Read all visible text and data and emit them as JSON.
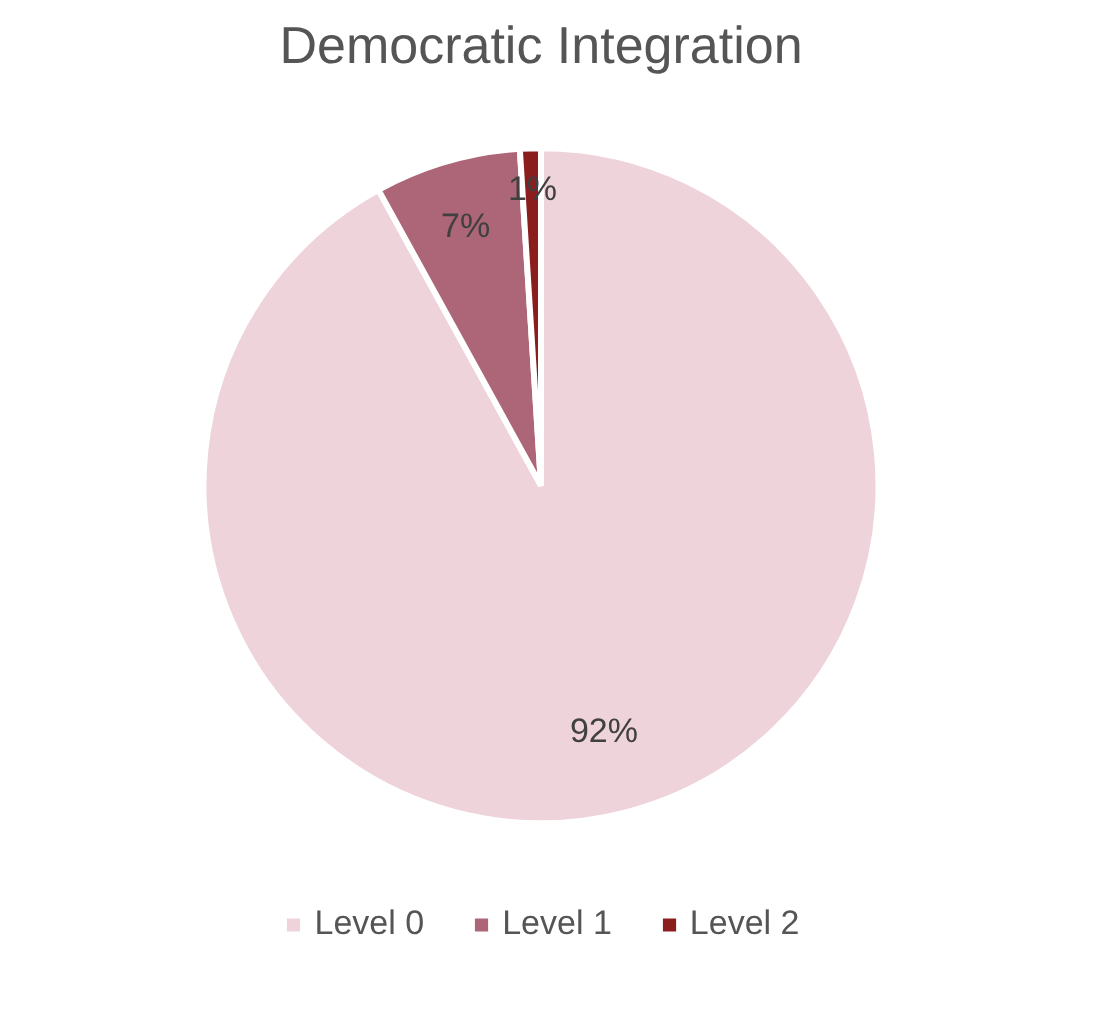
{
  "chart_data": {
    "type": "pie",
    "title": "Democratic Integration",
    "categories": [
      "Level 0",
      "Level 1",
      "Level 2"
    ],
    "values": [
      92,
      7,
      1
    ],
    "value_labels": [
      "92%",
      "7%",
      "1%"
    ],
    "colors": [
      "#eed3da",
      "#ad6677",
      "#8c1d1d"
    ],
    "legend": "bottom"
  }
}
